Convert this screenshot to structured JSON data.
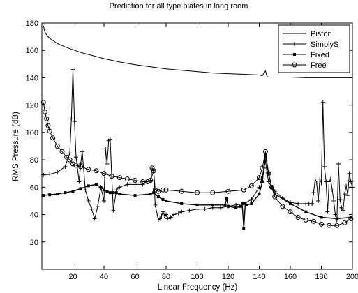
{
  "chart_data": {
    "type": "line",
    "title": "Prediction for all type plates in long room",
    "xlabel": "Linear Frequency (Hz)",
    "ylabel": "RMS Pressure (dB)",
    "xlim": [
      0,
      200
    ],
    "ylim": [
      0,
      180
    ],
    "xticks": [
      20,
      40,
      60,
      80,
      100,
      120,
      140,
      160,
      180,
      200
    ],
    "yticks": [
      20,
      40,
      60,
      80,
      100,
      120,
      140,
      160,
      180
    ],
    "grid": false,
    "legend_position": "top-right",
    "series": [
      {
        "name": "Piston",
        "marker": "none",
        "x": [
          1,
          2,
          4,
          6,
          8,
          10,
          15,
          20,
          25,
          30,
          40,
          50,
          60,
          70,
          80,
          90,
          100,
          110,
          120,
          130,
          140,
          142,
          144,
          145,
          146,
          150,
          160,
          170,
          180,
          190,
          199
        ],
        "y": [
          178,
          173,
          170,
          168,
          166.5,
          165,
          162.5,
          160.5,
          158.5,
          157,
          154,
          151.5,
          149.5,
          148,
          146.5,
          145.5,
          144.5,
          143.5,
          143,
          142.5,
          142,
          141.5,
          145,
          141,
          140.5,
          140.5,
          140.5,
          140,
          140,
          140,
          140
        ]
      },
      {
        "name": "SimplyS",
        "marker": "plus",
        "x": [
          1,
          5,
          10,
          15,
          18,
          19,
          20,
          21,
          22,
          24,
          25,
          26,
          28,
          30,
          32,
          34,
          36,
          38,
          40,
          41,
          42,
          43,
          44,
          45,
          46,
          48,
          50,
          55,
          60,
          65,
          70,
          72,
          73,
          75,
          76,
          77,
          78,
          79,
          80,
          81,
          83,
          85,
          88,
          90,
          95,
          100,
          105,
          110,
          115,
          120,
          125,
          130,
          135,
          140,
          142,
          143,
          144,
          145,
          146,
          148,
          150,
          155,
          160,
          165,
          170,
          172,
          174,
          175,
          176,
          177,
          178,
          179,
          180,
          181,
          182,
          183,
          184,
          185,
          186,
          187,
          188,
          189,
          190,
          191,
          192,
          193,
          194,
          195,
          196,
          197,
          198,
          199,
          200
        ],
        "y": [
          69,
          69.5,
          71,
          75,
          85,
          110,
          146,
          108,
          82,
          64,
          77,
          86,
          58,
          50,
          44,
          37,
          46,
          60,
          50,
          88,
          77,
          94,
          95,
          68,
          43,
          58,
          60,
          62,
          62,
          62,
          65,
          72,
          47,
          36,
          37,
          39,
          42,
          39,
          40,
          37,
          38,
          40,
          41,
          42,
          43,
          44,
          44,
          45,
          45,
          46,
          47,
          48,
          51,
          60,
          68,
          74,
          79,
          71,
          64,
          60,
          57,
          52,
          49,
          48,
          48,
          48,
          48,
          56,
          66,
          63,
          50,
          66,
          63,
          122,
          75,
          64,
          42,
          64,
          66,
          58,
          50,
          40,
          36,
          77,
          51,
          45,
          43,
          55,
          61,
          54,
          70,
          64,
          60
        ]
      },
      {
        "name": "Fixed",
        "marker": "square",
        "x": [
          1,
          5,
          10,
          15,
          20,
          25,
          30,
          35,
          38,
          40,
          42,
          44,
          46,
          48,
          50,
          60,
          70,
          72,
          75,
          78,
          80,
          90,
          100,
          110,
          118,
          119,
          120,
          125,
          128,
          129,
          130,
          131,
          132,
          135,
          140,
          142,
          144,
          146,
          148,
          150,
          160,
          170,
          180,
          190,
          199
        ],
        "y": [
          54,
          54.5,
          55,
          56,
          57,
          59,
          61,
          62,
          60,
          58,
          57,
          56,
          56,
          56,
          55,
          54,
          55,
          56,
          53,
          51,
          50,
          48,
          47,
          47,
          47,
          52,
          46,
          45,
          46,
          48,
          30,
          48,
          47,
          48,
          55,
          64,
          84,
          70,
          60,
          55,
          48,
          42,
          38,
          37,
          38
        ]
      },
      {
        "name": "Free",
        "marker": "circle",
        "x": [
          1,
          2,
          3,
          4,
          5,
          7,
          10,
          13,
          16,
          18,
          20,
          22,
          25,
          30,
          35,
          40,
          45,
          50,
          55,
          60,
          65,
          68,
          70,
          71,
          72,
          73,
          75,
          78,
          80,
          90,
          100,
          110,
          120,
          130,
          135,
          140,
          142,
          144,
          146,
          148,
          150,
          155,
          160,
          165,
          170,
          175,
          180,
          185,
          190,
          195,
          199
        ],
        "y": [
          122,
          115,
          110,
          105,
          101,
          96,
          90,
          86,
          82,
          80,
          77,
          76,
          75,
          73,
          72,
          70,
          68,
          67,
          66,
          65,
          64,
          64,
          65,
          74,
          72,
          58,
          57,
          58,
          58,
          57,
          56,
          56,
          57,
          58,
          61,
          67,
          74,
          86,
          70,
          60,
          53,
          46,
          42,
          38,
          36,
          35,
          33,
          32,
          32,
          34,
          37
        ]
      }
    ]
  }
}
